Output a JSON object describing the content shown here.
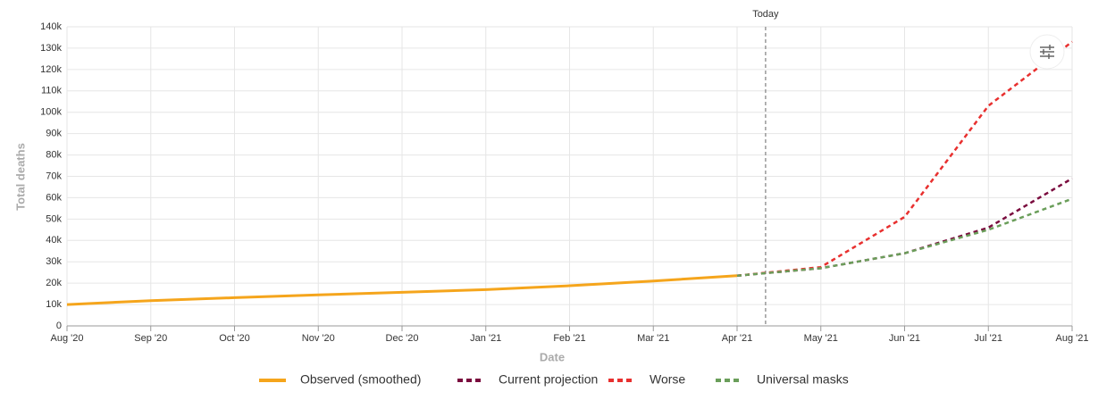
{
  "chart_data": {
    "type": "line",
    "x_label": "Date",
    "y_label": "Total deaths",
    "annotations": [
      "Today"
    ],
    "categories": [
      "Aug '20",
      "Sep '20",
      "Oct '20",
      "Nov '20",
      "Dec '20",
      "Jan '21",
      "Feb '21",
      "Mar '21",
      "Apr '21",
      "May '21",
      "Jun '21",
      "Jul '21",
      "Aug '21"
    ],
    "series": [
      {
        "name": "Observed (smoothed)",
        "color": "#f5a51c",
        "dashed": false,
        "values": [
          10000,
          11800,
          13200,
          14500,
          15700,
          17000,
          18800,
          21000,
          23500,
          null,
          null,
          null,
          null
        ]
      },
      {
        "name": "Current projection",
        "color": "#7a0c3e",
        "dashed": true,
        "values": [
          null,
          null,
          null,
          null,
          null,
          null,
          null,
          null,
          23500,
          27000,
          34000,
          46000,
          69000
        ]
      },
      {
        "name": "Worse",
        "color": "#e8302f",
        "dashed": true,
        "values": [
          null,
          null,
          null,
          null,
          null,
          null,
          null,
          null,
          23500,
          27500,
          51000,
          103000,
          133000
        ]
      },
      {
        "name": "Universal masks",
        "color": "#6a9e5a",
        "dashed": true,
        "values": [
          null,
          null,
          null,
          null,
          null,
          null,
          null,
          null,
          23500,
          27000,
          34000,
          45000,
          59500
        ]
      }
    ],
    "ylim": [
      0,
      140000
    ],
    "yticks": [
      0,
      {
        "value": 10000,
        "label": "10k"
      },
      {
        "value": 20000,
        "label": "20k"
      },
      {
        "value": 30000,
        "label": "30k"
      },
      {
        "value": 40000,
        "label": "40k"
      },
      {
        "value": 50000,
        "label": "50k"
      },
      {
        "value": 60000,
        "label": "60k"
      },
      {
        "value": 70000,
        "label": "70k"
      },
      {
        "value": 80000,
        "label": "80k"
      },
      {
        "value": 90000,
        "label": "90k"
      },
      {
        "value": 100000,
        "label": "100k"
      },
      {
        "value": 110000,
        "label": "110k"
      },
      {
        "value": 120000,
        "label": "120k"
      },
      {
        "value": 130000,
        "label": "130k"
      },
      {
        "value": 140000,
        "label": "140k"
      }
    ],
    "grid": true,
    "legend_position": "bottom"
  }
}
